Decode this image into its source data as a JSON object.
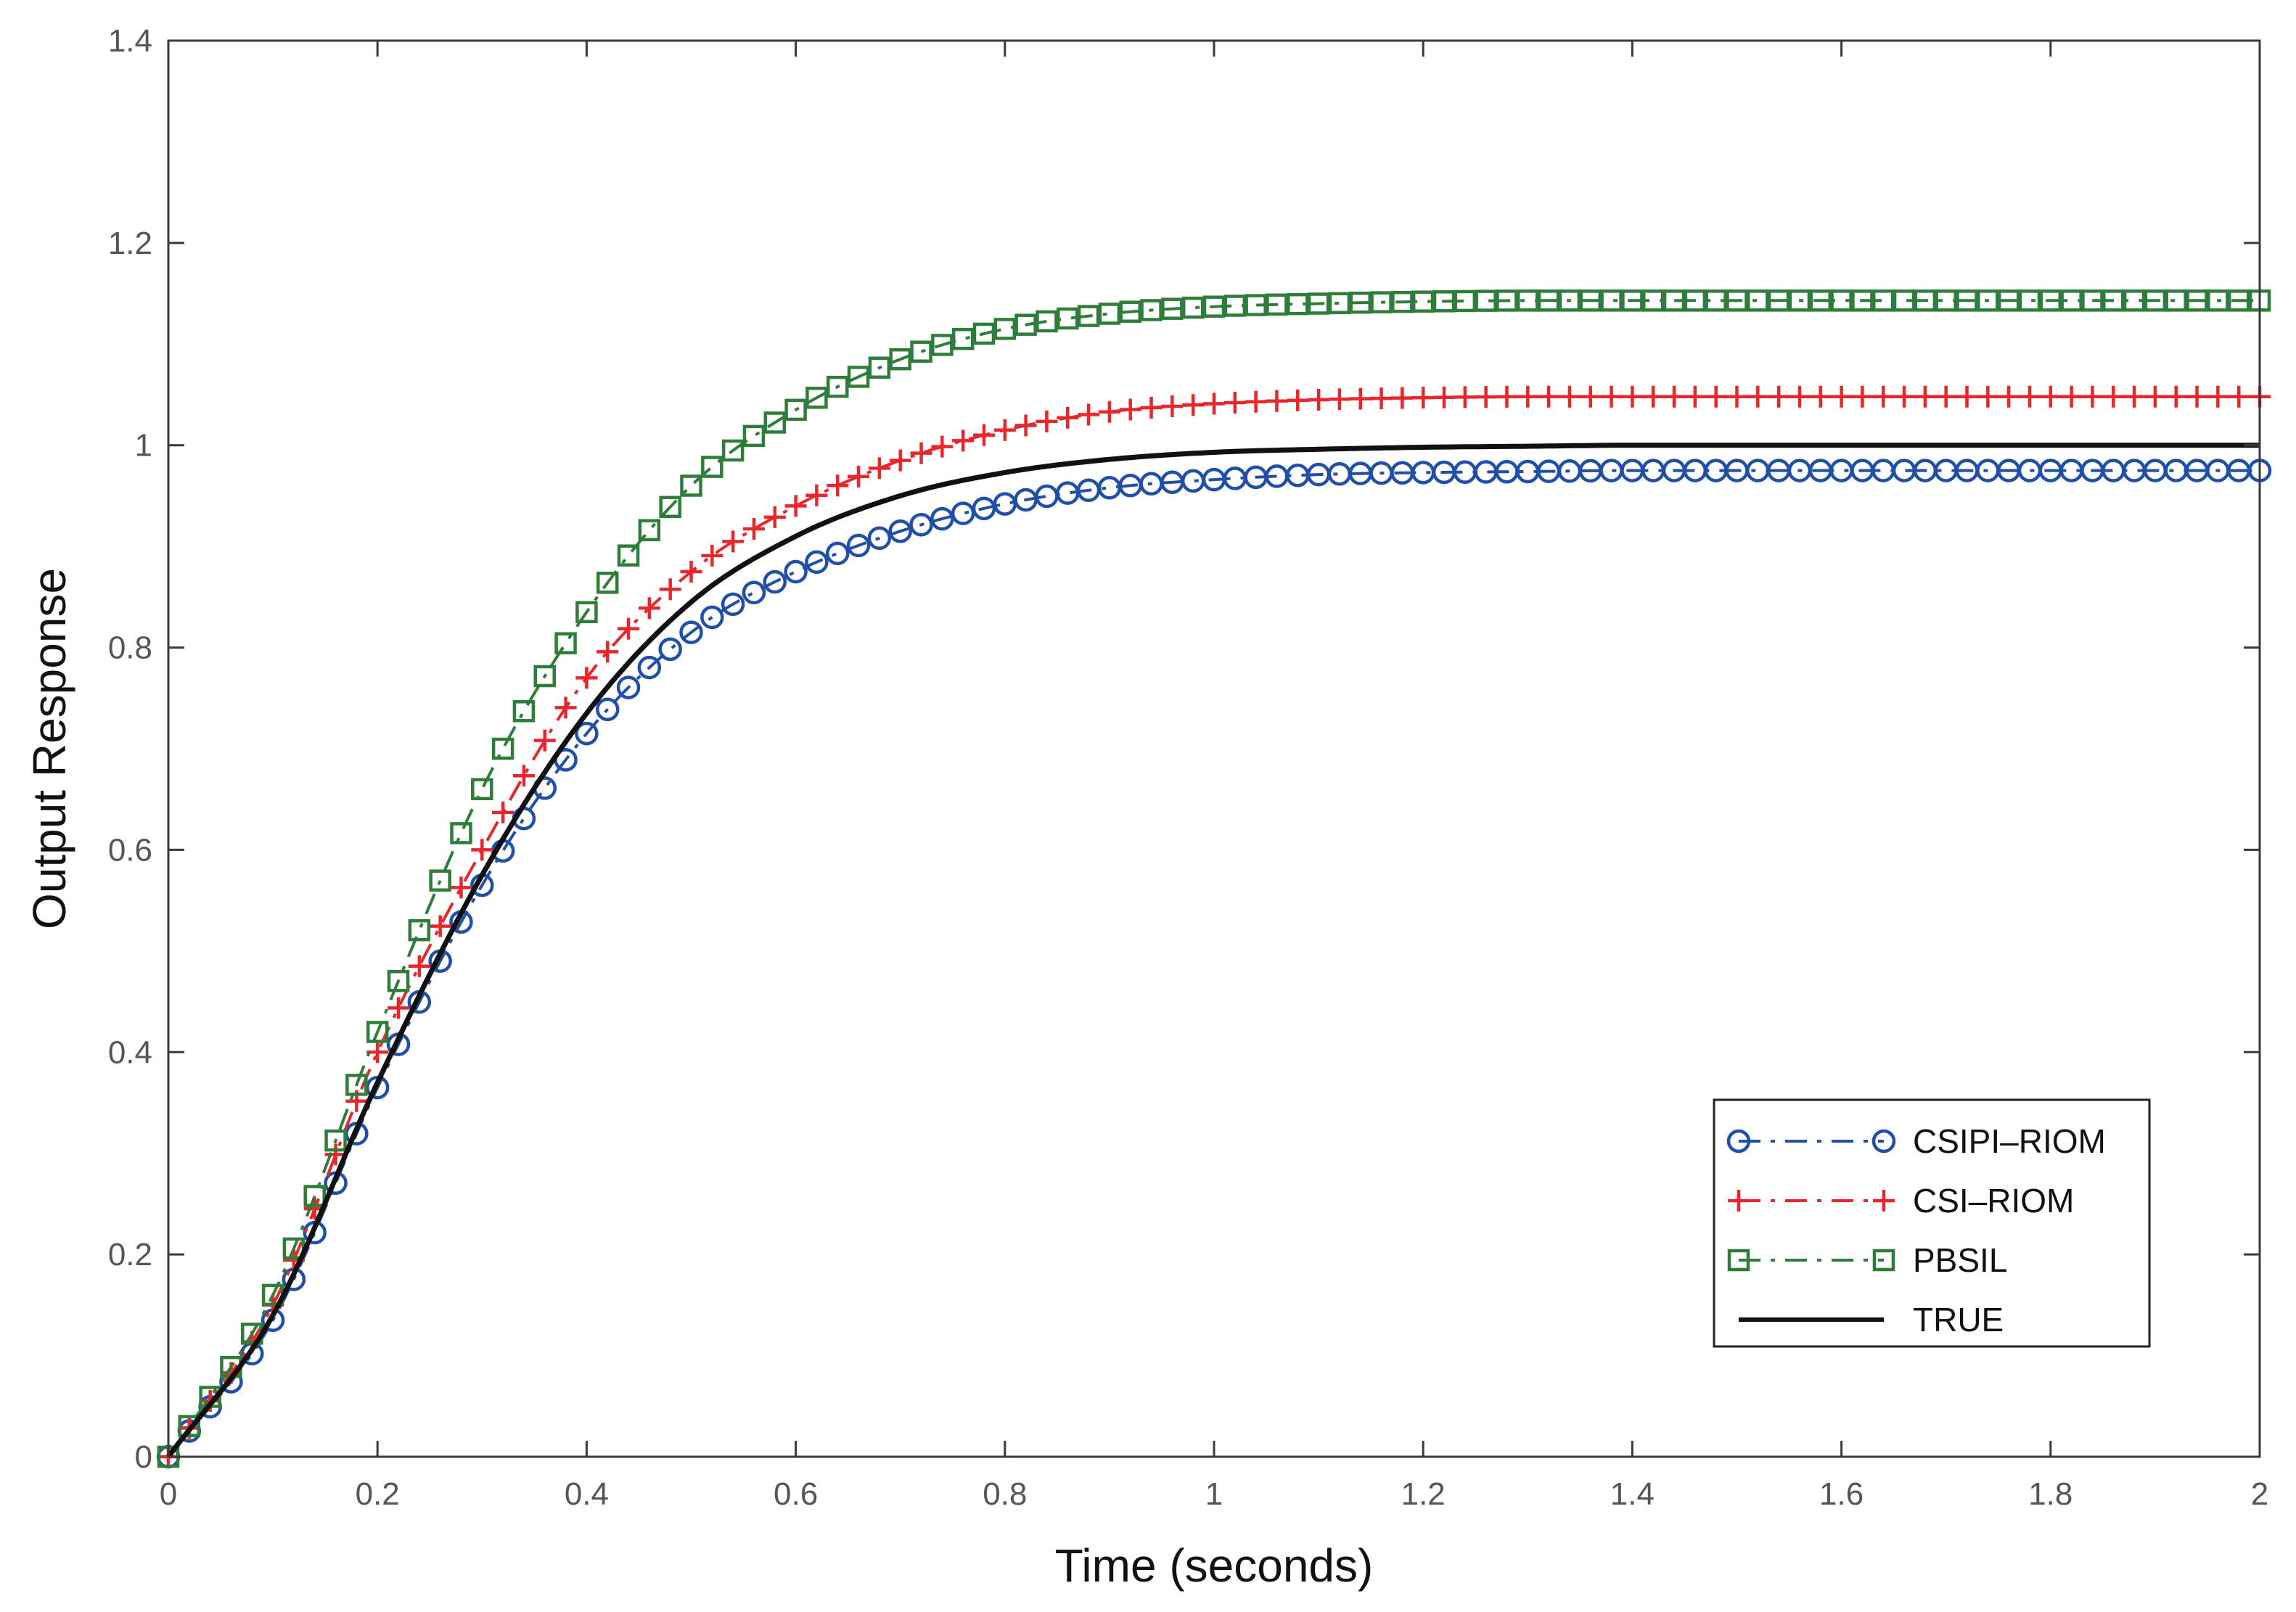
{
  "chart_data": {
    "type": "line",
    "title": "",
    "xlabel": "Time (seconds)",
    "ylabel": "Output Response",
    "xlim": [
      0,
      2
    ],
    "ylim": [
      0,
      1.4
    ],
    "xticks": [
      0,
      0.2,
      0.4,
      0.6,
      0.8,
      1,
      1.2,
      1.4,
      1.6,
      1.8,
      2
    ],
    "xtick_labels": [
      "0",
      "0.2",
      "0.4",
      "0.6",
      "0.8",
      "1",
      "1.2",
      "1.4",
      "1.6",
      "1.8",
      "2"
    ],
    "yticks": [
      0,
      0.2,
      0.4,
      0.6,
      0.8,
      1,
      1.2,
      1.4
    ],
    "ytick_labels": [
      "0",
      "0.2",
      "0.4",
      "0.6",
      "0.8",
      "1",
      "1.2",
      "1.4"
    ],
    "grid": false,
    "legend_position": "bottom-right",
    "x": [
      0,
      0.1,
      0.2,
      0.3,
      0.4,
      0.5,
      0.6,
      0.7,
      0.8,
      0.9,
      1.0,
      1.1,
      1.2,
      1.3,
      1.4,
      1.5,
      1.6,
      1.7,
      1.8,
      1.9,
      2.0
    ],
    "series": [
      {
        "name": "CSIPI–RIOM",
        "color": "#1f4fa8",
        "marker": "circle",
        "line": "dash-dot",
        "values": [
          0,
          0.135,
          0.365,
          0.565,
          0.715,
          0.815,
          0.875,
          0.915,
          0.942,
          0.958,
          0.966,
          0.971,
          0.973,
          0.974,
          0.975,
          0.975,
          0.975,
          0.975,
          0.975,
          0.975,
          0.975
        ]
      },
      {
        "name": "CSI–RIOM",
        "color": "#e8262b",
        "marker": "plus",
        "line": "dash-dot",
        "values": [
          0,
          0.15,
          0.4,
          0.6,
          0.77,
          0.875,
          0.94,
          0.985,
          1.015,
          1.033,
          1.041,
          1.045,
          1.047,
          1.048,
          1.048,
          1.048,
          1.048,
          1.048,
          1.048,
          1.048,
          1.048
        ]
      },
      {
        "name": "PBSIL",
        "color": "#2f7d3a",
        "marker": "square",
        "line": "dash-dot",
        "values": [
          0,
          0.16,
          0.42,
          0.66,
          0.835,
          0.96,
          1.035,
          1.085,
          1.115,
          1.13,
          1.137,
          1.14,
          1.142,
          1.143,
          1.143,
          1.143,
          1.143,
          1.143,
          1.143,
          1.143,
          1.143
        ]
      },
      {
        "name": "TRUE",
        "color": "#111111",
        "marker": "none",
        "line": "solid",
        "values": [
          0,
          0.14,
          0.37,
          0.575,
          0.735,
          0.845,
          0.91,
          0.95,
          0.973,
          0.986,
          0.993,
          0.996,
          0.998,
          0.999,
          1.0,
          1.0,
          1.0,
          1.0,
          1.0,
          1.0,
          1.0
        ]
      }
    ]
  }
}
